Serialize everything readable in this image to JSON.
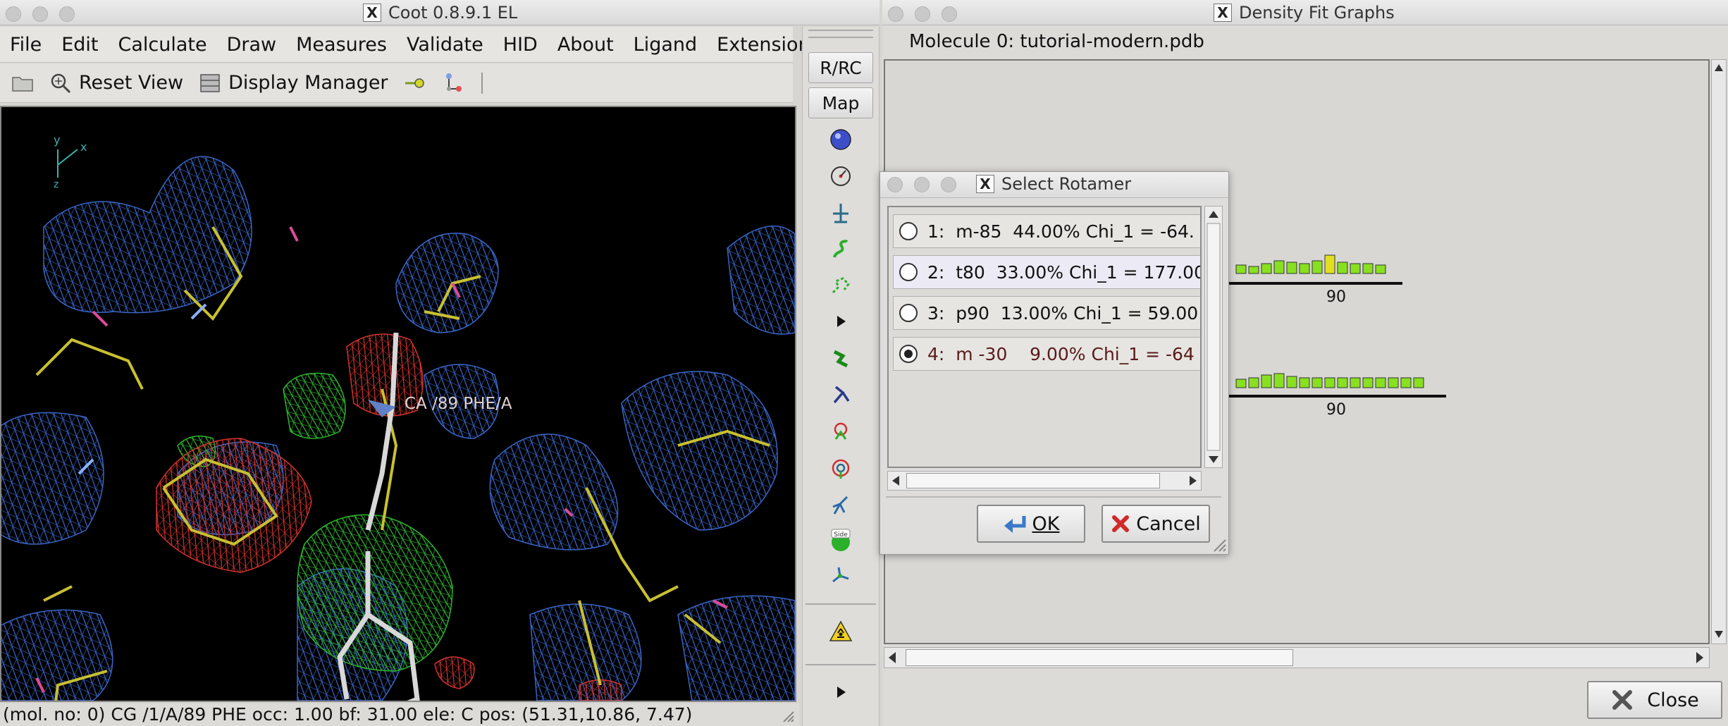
{
  "coot": {
    "title": "Coot 0.8.9.1 EL",
    "menu": [
      "File",
      "Edit",
      "Calculate",
      "Draw",
      "Measures",
      "Validate",
      "HID",
      "About",
      "Ligand",
      "Extensions"
    ],
    "toolbar": {
      "reset_view": "Reset View",
      "display_manager": "Display Manager"
    },
    "axis_labels": {
      "x": "x",
      "y": "y",
      "z": "z"
    },
    "atom_label": "CA /89 PHE/A",
    "status": "(mol. no: 0)  CG /1/A/89 PHE occ:  1.00 bf: 31.00 ele:  C pos: (51.31,10.86, 7.47)"
  },
  "side_toolbar": {
    "buttons": [
      "R/RC",
      "Map"
    ],
    "icons": [
      "rotate-translate-zone-icon",
      "auto-fit-rotamer-icon",
      "rigid-body-fit-icon",
      "real-space-refine-icon",
      "regularize-icon",
      "more-arrow-icon",
      "add-terminal-residue-icon",
      "mutate-icon",
      "rotamer-icon",
      "flip-peptide-icon",
      "side-chain-180-icon",
      "side-chains-icon",
      "add-atom-icon",
      "radioactive-icon",
      "expand-arrow-icon"
    ]
  },
  "density_fit": {
    "title": "Density Fit Graphs",
    "molecule_label": "Molecule 0: tutorial-modern.pdb",
    "tick_label_1": "90",
    "tick_label_2": "90",
    "close_label": "Close"
  },
  "rotamer_dialog": {
    "title": "Select Rotamer",
    "rotamers": [
      {
        "label": "1:  m-85  44.00% Chi_1 = -64.",
        "selected": false
      },
      {
        "label": "2:  t80  33.00% Chi_1 = 177.00",
        "selected": false
      },
      {
        "label": "3:  p90  13.00% Chi_1 = 59.00",
        "selected": false
      },
      {
        "label": "4:  m -30    9.00% Chi_1 = -64",
        "selected": true
      }
    ],
    "ok_label": "OK",
    "cancel_label": "Cancel"
  },
  "colors": {
    "density_blue": "#3d6bd1",
    "positive_green": "#2fb32f",
    "negative_red": "#d0332e",
    "carbon_yellow": "#c8c030",
    "bar_green": "#88e020"
  }
}
